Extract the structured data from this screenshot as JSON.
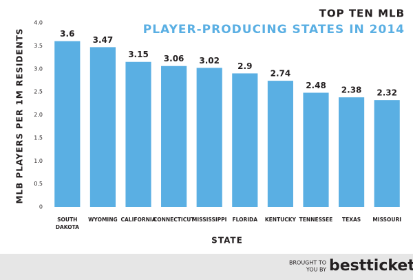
{
  "chart_data": {
    "type": "bar",
    "title": "TOP TEN MLB",
    "subtitle": "PLAYER-PRODUCING STATES IN 2014",
    "x_label": "STATE",
    "y_label": "MLB PLAYERS PER 1M RESIDENTS",
    "categories": [
      "SOUTH DAKOTA",
      "WYOMING",
      "CALIFORNIA",
      "CONNECTICUT",
      "MISSISSIPPI",
      "FLORIDA",
      "KENTUCKY",
      "TENNESSEE",
      "TEXAS",
      "MISSOURI"
    ],
    "values": [
      3.6,
      3.47,
      3.15,
      3.06,
      3.02,
      2.9,
      2.74,
      2.48,
      2.38,
      2.32
    ],
    "color": "#5aafe3",
    "ylim": [
      0,
      4
    ],
    "yticks": [
      0,
      0.5,
      {
        "value": 1,
        "label": "1.0"
      },
      1.5,
      {
        "value": 2,
        "label": "2.0"
      },
      2.5,
      {
        "value": 3,
        "label": "3.0"
      },
      3.5,
      {
        "value": 4,
        "label": "4.0"
      }
    ],
    "grid": false
  },
  "footer": {
    "prefix": [
      "BROUGHT TO",
      "YOU BY"
    ],
    "brand": "besttickets"
  }
}
